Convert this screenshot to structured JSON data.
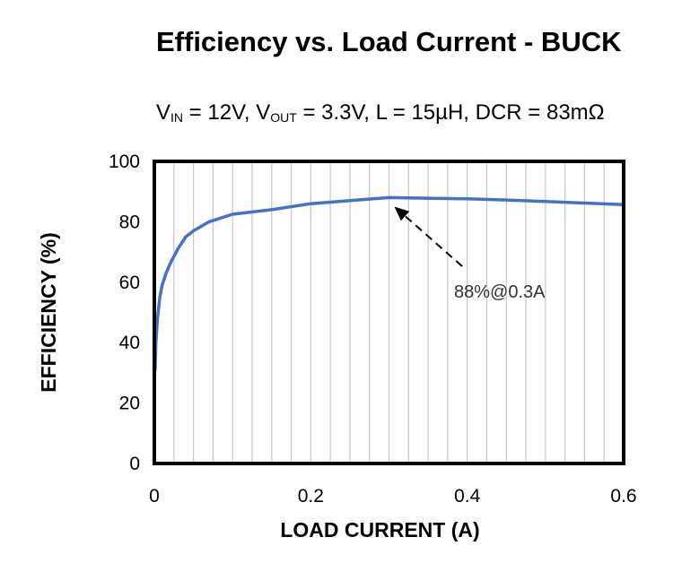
{
  "chart_data": {
    "type": "line",
    "title": "Efficiency vs. Load Current - BUCK",
    "subtitle": {
      "v_in": "V",
      "v_in_sub": "IN",
      "v_in_rest": " = 12V, ",
      "v_out": "V",
      "v_out_sub": "OUT",
      "v_out_rest": " = 3.3V, L = 15µH, DCR = 83mΩ"
    },
    "xlabel": "LOAD CURRENT (A)",
    "ylabel": "EFFICIENCY (%)",
    "xlim": [
      0,
      0.6
    ],
    "ylim": [
      0,
      100
    ],
    "xticks": [
      "0",
      "0.2",
      "0.4",
      "0.6"
    ],
    "yticks": [
      "0",
      "20",
      "40",
      "60",
      "80",
      "100"
    ],
    "grid": "vertical",
    "series": [
      {
        "color": "#4472c4",
        "x": [
          0.001,
          0.002,
          0.004,
          0.007,
          0.01,
          0.015,
          0.02,
          0.03,
          0.04,
          0.05,
          0.07,
          0.1,
          0.15,
          0.2,
          0.25,
          0.3,
          0.35,
          0.4,
          0.45,
          0.5,
          0.55,
          0.6
        ],
        "y": [
          31,
          40,
          48,
          55,
          59,
          63,
          66,
          71,
          75,
          77,
          80,
          82.5,
          84,
          86,
          87,
          88,
          87.8,
          87.6,
          87.2,
          86.7,
          86.2,
          85.7
        ]
      }
    ],
    "annotations": [
      {
        "text": "88%@0.3A",
        "x": 0.3,
        "y": 88
      }
    ]
  }
}
